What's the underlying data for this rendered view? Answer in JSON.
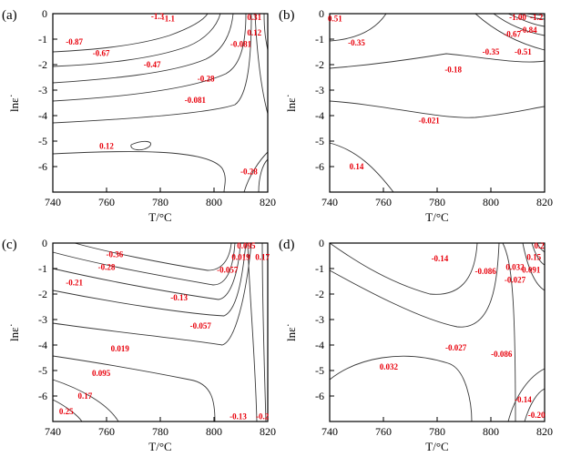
{
  "chart_data": [
    {
      "type": "contour",
      "panel_label": "(a)",
      "xlabel": "T/°C",
      "ylabel": "lnε˙",
      "xlim": [
        740,
        820
      ],
      "ylim": [
        -7,
        0
      ],
      "x_ticks": [
        "740",
        "760",
        "780",
        "800",
        "820"
      ],
      "y_ticks": [
        "0",
        "-1",
        "-2",
        "-3",
        "-4",
        "-5",
        "-6"
      ],
      "contour_labels": [
        {
          "text": "-1.3",
          "x": 779,
          "y": -0.1
        },
        {
          "text": "-1.1",
          "x": 783,
          "y": -0.2
        },
        {
          "text": "-0.87",
          "x": 748,
          "y": -1.1
        },
        {
          "text": "-0.67",
          "x": 758,
          "y": -1.55
        },
        {
          "text": "-0.47",
          "x": 777,
          "y": -2.0
        },
        {
          "text": "-0.28",
          "x": 797,
          "y": -2.55
        },
        {
          "text": "-0.081",
          "x": 793,
          "y": -3.4
        },
        {
          "text": "-0.081",
          "x": 810,
          "y": -1.2
        },
        {
          "text": "0.31",
          "x": 815,
          "y": -0.15
        },
        {
          "text": "0.12",
          "x": 815,
          "y": -0.75
        },
        {
          "text": "0.12",
          "x": 760,
          "y": -5.2
        },
        {
          "text": "-0.28",
          "x": 813,
          "y": -6.2
        }
      ]
    },
    {
      "type": "contour",
      "panel_label": "(b)",
      "xlabel": "T/°C",
      "ylabel": "lnε˙",
      "xlim": [
        740,
        820
      ],
      "ylim": [
        -7,
        0
      ],
      "x_ticks": [
        "740",
        "760",
        "780",
        "800",
        "820"
      ],
      "y_ticks": [
        "0",
        "-1",
        "-2",
        "-3",
        "-4",
        "-5",
        "-6"
      ],
      "contour_labels": [
        {
          "text": "0.51",
          "x": 742,
          "y": -0.2
        },
        {
          "text": "-0.35",
          "x": 750,
          "y": -1.15
        },
        {
          "text": "-1.00",
          "x": 810,
          "y": -0.15
        },
        {
          "text": "-1.2",
          "x": 817,
          "y": -0.15
        },
        {
          "text": "-0.67",
          "x": 808,
          "y": -0.8
        },
        {
          "text": "-0.84",
          "x": 814,
          "y": -0.65
        },
        {
          "text": "-0.35",
          "x": 800,
          "y": -1.5
        },
        {
          "text": "-0.51",
          "x": 812,
          "y": -1.5
        },
        {
          "text": "-0.18",
          "x": 786,
          "y": -2.2
        },
        {
          "text": "-0.021",
          "x": 777,
          "y": -4.2
        },
        {
          "text": "0.14",
          "x": 750,
          "y": -6.0
        }
      ]
    },
    {
      "type": "contour",
      "panel_label": "(c)",
      "xlabel": "T/°C",
      "ylabel": "lnε˙",
      "xlim": [
        740,
        820
      ],
      "ylim": [
        -7,
        0
      ],
      "x_ticks": [
        "740",
        "760",
        "780",
        "800",
        "820"
      ],
      "y_ticks": [
        "0",
        "-1",
        "-2",
        "-3",
        "-4",
        "-5",
        "-6"
      ],
      "contour_labels": [
        {
          "text": "-0.36",
          "x": 763,
          "y": -0.45
        },
        {
          "text": "-0.28",
          "x": 760,
          "y": -0.95
        },
        {
          "text": "-0.21",
          "x": 748,
          "y": -1.55
        },
        {
          "text": "-0.13",
          "x": 787,
          "y": -2.15
        },
        {
          "text": "-0.057",
          "x": 795,
          "y": -3.25
        },
        {
          "text": "-0.057",
          "x": 805,
          "y": -1.05
        },
        {
          "text": "0.019",
          "x": 765,
          "y": -4.15
        },
        {
          "text": "0.019",
          "x": 810,
          "y": -0.55
        },
        {
          "text": "0.095",
          "x": 758,
          "y": -5.1
        },
        {
          "text": "0.095",
          "x": 812,
          "y": -0.1
        },
        {
          "text": "0.17",
          "x": 818,
          "y": -0.55
        },
        {
          "text": "0.17",
          "x": 752,
          "y": -6.0
        },
        {
          "text": "0.25",
          "x": 745,
          "y": -6.6
        },
        {
          "text": "-0.13",
          "x": 809,
          "y": -6.8
        },
        {
          "text": "-0.2",
          "x": 818,
          "y": -6.8
        }
      ]
    },
    {
      "type": "contour",
      "panel_label": "(d)",
      "xlabel": "T/°C",
      "ylabel": "lnε˙",
      "xlim": [
        740,
        820
      ],
      "ylim": [
        -7,
        0
      ],
      "x_ticks": [
        "740",
        "760",
        "780",
        "800",
        "820"
      ],
      "y_ticks": [
        "0",
        "-1",
        "-2",
        "-3",
        "-4",
        "-5",
        "-6"
      ],
      "contour_labels": [
        {
          "text": "-0.14",
          "x": 781,
          "y": -0.6
        },
        {
          "text": "-0.086",
          "x": 798,
          "y": -1.1
        },
        {
          "text": "0.032",
          "x": 809,
          "y": -0.95
        },
        {
          "text": "-0.027",
          "x": 809,
          "y": -1.45
        },
        {
          "text": "0.091",
          "x": 815,
          "y": -1.05
        },
        {
          "text": "0.15",
          "x": 816,
          "y": -0.55
        },
        {
          "text": "0.2",
          "x": 818,
          "y": -0.1
        },
        {
          "text": "-0.027",
          "x": 787,
          "y": -4.1
        },
        {
          "text": "-0.086",
          "x": 804,
          "y": -4.35
        },
        {
          "text": "0.032",
          "x": 762,
          "y": -4.85
        },
        {
          "text": "-0.14",
          "x": 812,
          "y": -6.15
        },
        {
          "text": "-0.20",
          "x": 817,
          "y": -6.75
        }
      ]
    }
  ]
}
